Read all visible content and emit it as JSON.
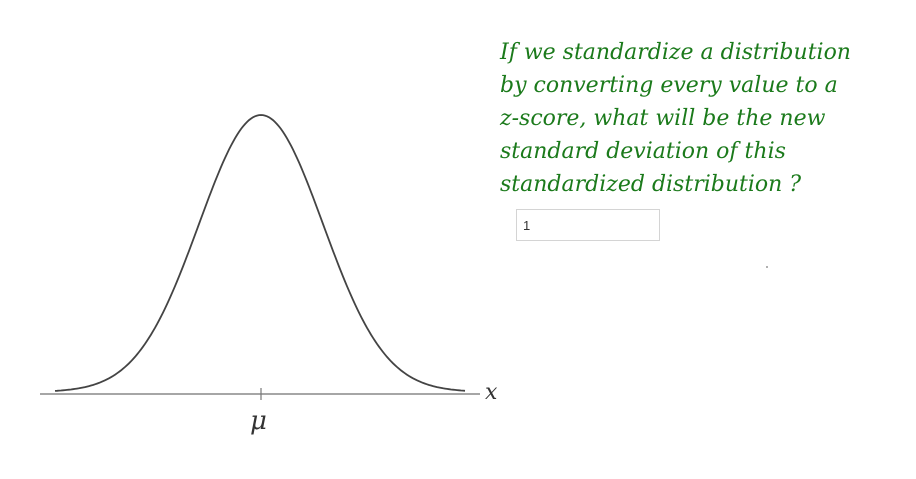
{
  "question": {
    "lines": [
      "If we standardize a distribution",
      "by converting every value to a",
      "z-score, what will be the new",
      "standard deviation of this",
      "standardized distribution ?"
    ]
  },
  "answer": {
    "value": "1"
  },
  "graph": {
    "x_axis_label": "x",
    "center_label": "μ",
    "colors": {
      "curve": "#444444",
      "axis": "#888888",
      "question_text": "#1b7a1b"
    }
  }
}
